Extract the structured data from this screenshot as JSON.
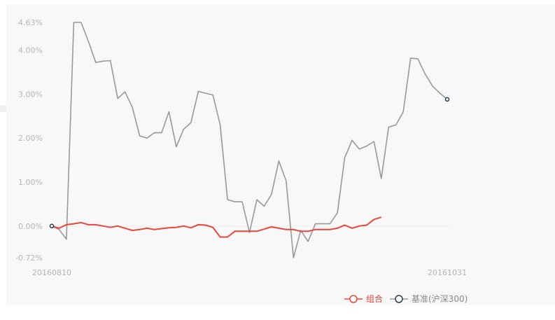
{
  "chart_data": {
    "type": "line",
    "x_start_label": "20160810",
    "x_end_label": "20161031",
    "y_ticks": [
      "4.63%",
      "4.00%",
      "3.00%",
      "2.00%",
      "1.00%",
      "0.00%",
      "-0.72%"
    ],
    "y_tick_values": [
      4.63,
      4.0,
      3.0,
      2.0,
      1.0,
      0.0,
      -0.72
    ],
    "ylim": [
      -0.72,
      4.63
    ],
    "legend_position": "bottom-right",
    "series": [
      {
        "name": "组合",
        "color": "#e8463c",
        "values": [
          0.0,
          -0.05,
          0.03,
          0.05,
          0.08,
          0.03,
          0.03,
          0.0,
          -0.03,
          0.0,
          -0.05,
          -0.1,
          -0.08,
          -0.05,
          -0.08,
          -0.06,
          -0.04,
          -0.03,
          0.0,
          -0.04,
          0.03,
          0.02,
          -0.03,
          -0.25,
          -0.25,
          -0.12,
          -0.12,
          -0.12,
          -0.12,
          -0.07,
          -0.02,
          -0.05,
          -0.08,
          -0.08,
          -0.12,
          -0.12,
          -0.08,
          -0.08,
          -0.08,
          -0.05,
          0.02,
          -0.05,
          0.0,
          0.02,
          0.15,
          0.2
        ]
      },
      {
        "name": "基准(沪深300)",
        "color": "#999999",
        "values": [
          0.0,
          -0.08,
          -0.3,
          4.63,
          4.63,
          4.2,
          3.72,
          3.75,
          3.76,
          2.9,
          3.05,
          2.7,
          2.05,
          2.0,
          2.12,
          2.12,
          2.6,
          1.8,
          2.2,
          2.35,
          3.06,
          3.02,
          2.98,
          2.3,
          0.6,
          0.55,
          0.55,
          -0.15,
          0.6,
          0.45,
          0.72,
          1.48,
          1.03,
          -0.72,
          -0.1,
          -0.35,
          0.05,
          0.05,
          0.05,
          0.3,
          1.55,
          1.95,
          1.75,
          1.82,
          1.92,
          1.08,
          2.25,
          2.3,
          2.6,
          3.82,
          3.8,
          3.45,
          3.18,
          3.02,
          2.88
        ]
      }
    ]
  }
}
